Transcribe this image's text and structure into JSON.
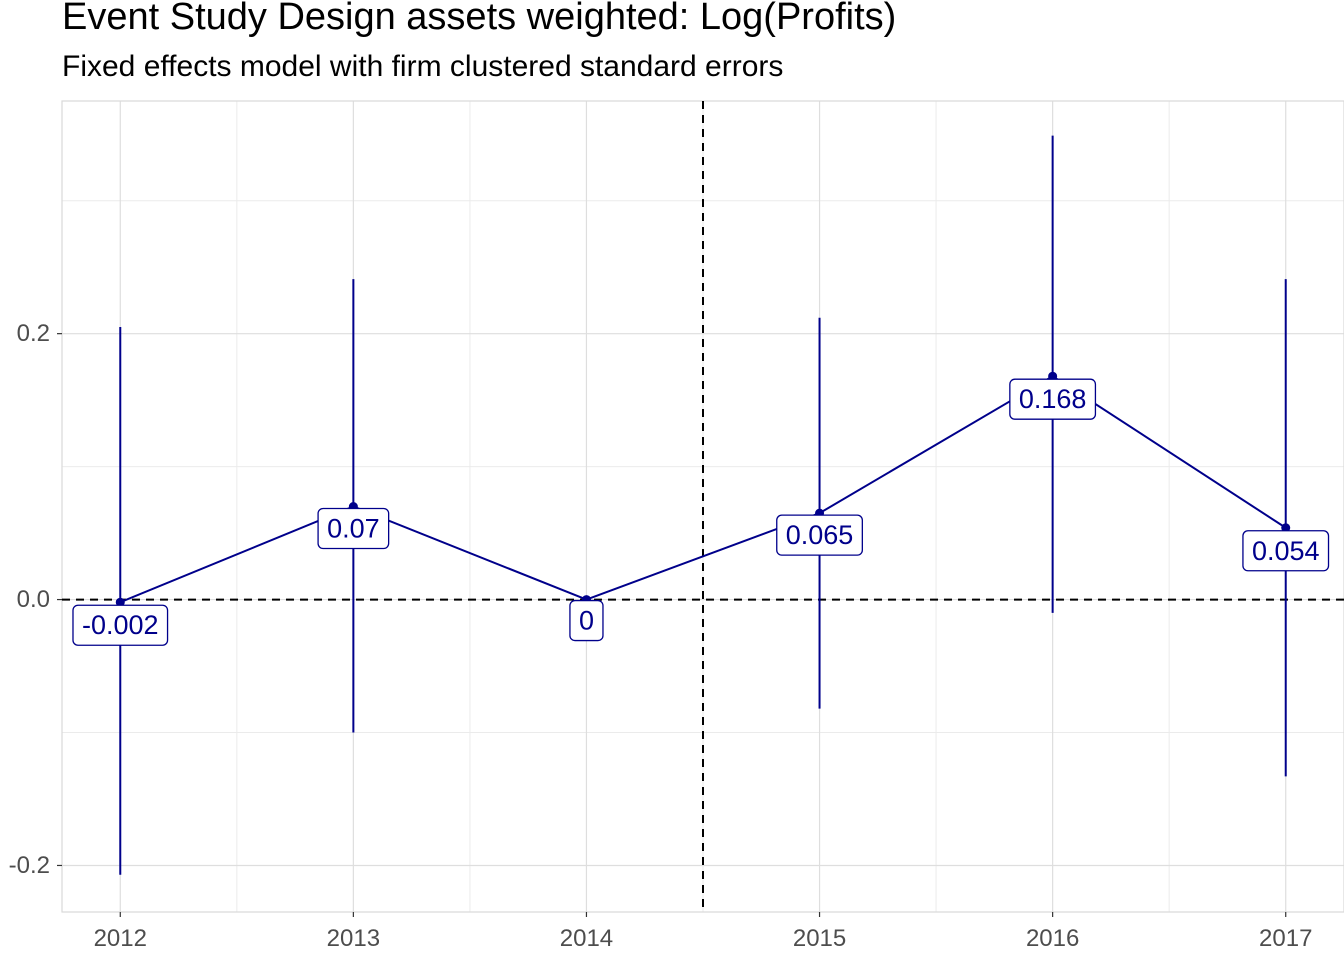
{
  "chart_data": {
    "type": "line",
    "title": "Event Study Design assets weighted: Log(Profits)",
    "subtitle": "Fixed effects model with firm clustered standard errors",
    "xlabel": "",
    "ylabel": "",
    "x": [
      2012,
      2013,
      2014,
      2015,
      2016,
      2017
    ],
    "x_tick_labels": [
      "2012",
      "2013",
      "2014",
      "2015",
      "2016",
      "2017"
    ],
    "xlim": [
      2011.75,
      2017.25
    ],
    "y_ticks": [
      -0.2,
      0.0,
      0.2
    ],
    "y_tick_labels": [
      "-0.2",
      "0.0",
      "0.2"
    ],
    "ylim": [
      -0.235,
      0.375
    ],
    "grid": true,
    "series": [
      {
        "values": [
          -0.002,
          0.07,
          0.0,
          0.065,
          0.168,
          0.054
        ],
        "ci_low": [
          -0.207,
          -0.1,
          0.0,
          -0.082,
          -0.01,
          -0.133
        ],
        "ci_high": [
          0.205,
          0.241,
          0.0,
          0.212,
          0.349,
          0.241
        ],
        "labels": [
          "-0.002",
          "0.07",
          "0",
          "0.065",
          "0.168",
          "0.054"
        ],
        "color": "#00008b"
      }
    ],
    "reference_lines": {
      "horizontal_y": 0,
      "vertical_x": 2014.5
    }
  }
}
